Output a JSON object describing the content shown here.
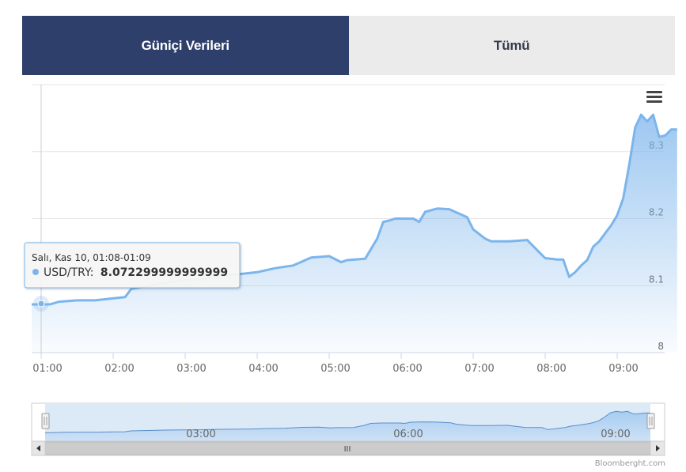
{
  "tabs": [
    {
      "label": "Güniçi Verileri",
      "active": true
    },
    {
      "label": "Tümü",
      "active": false
    }
  ],
  "tooltip": {
    "header": "Salı, Kas 10, 01:08-01:09",
    "series": "USD/TRY:",
    "value": "8.072299999999999"
  },
  "navigator": {
    "scrollbar_grip": "III",
    "labels": [
      "03:00",
      "06:00",
      "09:00"
    ]
  },
  "credit": "Bloomberght.com",
  "colors": {
    "tab_active": "#2f3f6b",
    "tab_inactive": "#ebebeb",
    "line": "#7cb5ec",
    "grid": "#e6e6e6"
  },
  "chart_data": {
    "type": "area",
    "series": [
      {
        "name": "USD/TRY",
        "x": [
          "01:00",
          "01:05",
          "01:08",
          "01:15",
          "01:30",
          "01:45",
          "02:00",
          "02:10",
          "02:15",
          "02:30",
          "02:45",
          "03:00",
          "03:15",
          "03:30",
          "03:45",
          "04:00",
          "04:15",
          "04:30",
          "04:45",
          "05:00",
          "05:10",
          "05:15",
          "05:30",
          "05:40",
          "05:45",
          "05:50",
          "05:55",
          "06:00",
          "06:10",
          "06:15",
          "06:20",
          "06:30",
          "06:40",
          "06:45",
          "06:55",
          "07:00",
          "07:10",
          "07:15",
          "07:30",
          "07:45",
          "07:55",
          "08:00",
          "08:10",
          "08:15",
          "08:20",
          "08:25",
          "08:30",
          "08:35",
          "08:40",
          "08:45",
          "08:50",
          "08:55",
          "09:00",
          "09:05",
          "09:10",
          "09:15",
          "09:20",
          "09:25",
          "09:30",
          "09:35",
          "09:40",
          "09:45",
          "09:50"
        ],
        "y": [
          8.072,
          8.072,
          8.0723,
          8.076,
          8.078,
          8.078,
          8.081,
          8.083,
          8.095,
          8.1,
          8.105,
          8.108,
          8.11,
          8.115,
          8.117,
          8.12,
          8.126,
          8.13,
          8.142,
          8.144,
          8.135,
          8.138,
          8.14,
          8.17,
          8.195,
          8.197,
          8.2,
          8.2,
          8.2,
          8.195,
          8.21,
          8.215,
          8.214,
          8.21,
          8.202,
          8.184,
          8.17,
          8.166,
          8.166,
          8.168,
          8.15,
          8.141,
          8.139,
          8.139,
          8.113,
          8.12,
          8.13,
          8.138,
          8.158,
          8.166,
          8.178,
          8.19,
          8.205,
          8.23,
          8.28,
          8.336,
          8.355,
          8.345,
          8.355,
          8.322,
          8.324,
          8.333,
          8.333
        ]
      }
    ],
    "x_ticks": [
      "01:00",
      "02:00",
      "03:00",
      "04:00",
      "05:00",
      "06:00",
      "07:00",
      "08:00",
      "09:00"
    ],
    "y_ticks": [
      "8",
      "8.1",
      "8.2",
      "8.3"
    ],
    "ylim": [
      8.0,
      8.4
    ],
    "grid": true
  }
}
